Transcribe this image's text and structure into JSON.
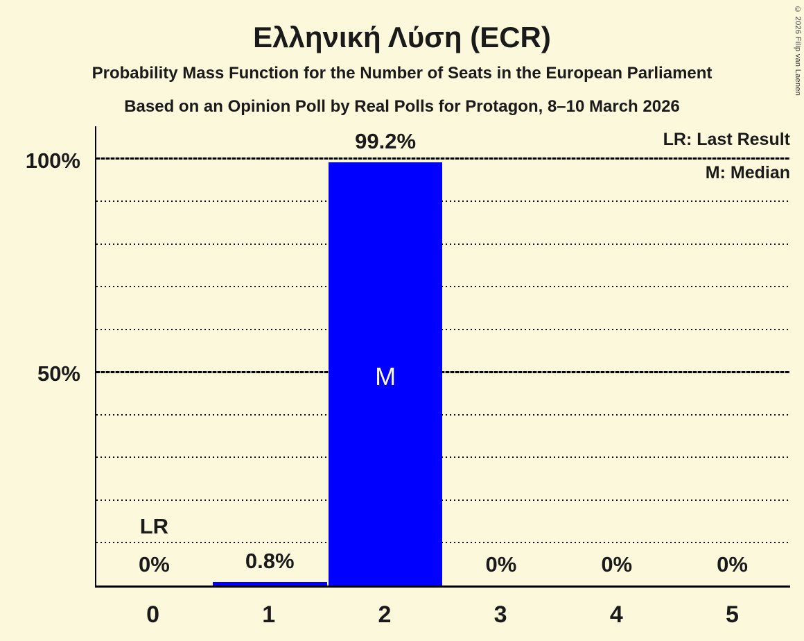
{
  "title": "Ελληνική Λύση (ECR)",
  "subtitle1": "Probability Mass Function for the Number of Seats in the European Parliament",
  "subtitle2": "Based on an Opinion Poll by Real Polls for Protagon, 8–10 March 2026",
  "copyright": "© 2026 Filip van Laenen",
  "legend": {
    "lr": "LR: Last Result",
    "m": "M: Median"
  },
  "colors": {
    "background": "#fcf8dc",
    "bar": "#0000ff",
    "text": "#1a1a1a"
  },
  "chart_data": {
    "type": "bar",
    "title": "Ελληνική Λύση (ECR)",
    "categories": [
      "0",
      "1",
      "2",
      "3",
      "4",
      "5"
    ],
    "values": [
      0,
      0.8,
      99.2,
      0,
      0,
      0
    ],
    "bar_labels": [
      "0%",
      "0.8%",
      "99.2%",
      "0%",
      "0%",
      "0%"
    ],
    "ylim": [
      0,
      100
    ],
    "yticks": [
      {
        "value": 100,
        "label": "100%"
      },
      {
        "value": 50,
        "label": "50%"
      }
    ],
    "solid_lines": [
      100,
      50
    ],
    "dotted_gridlines": [
      90,
      80,
      70,
      60,
      40,
      30,
      20,
      10
    ],
    "last_result_seat": 0,
    "median_seat": 2,
    "annotations": {
      "lr": "LR",
      "m": "M"
    },
    "legend_position": "top-right",
    "grid": true
  }
}
